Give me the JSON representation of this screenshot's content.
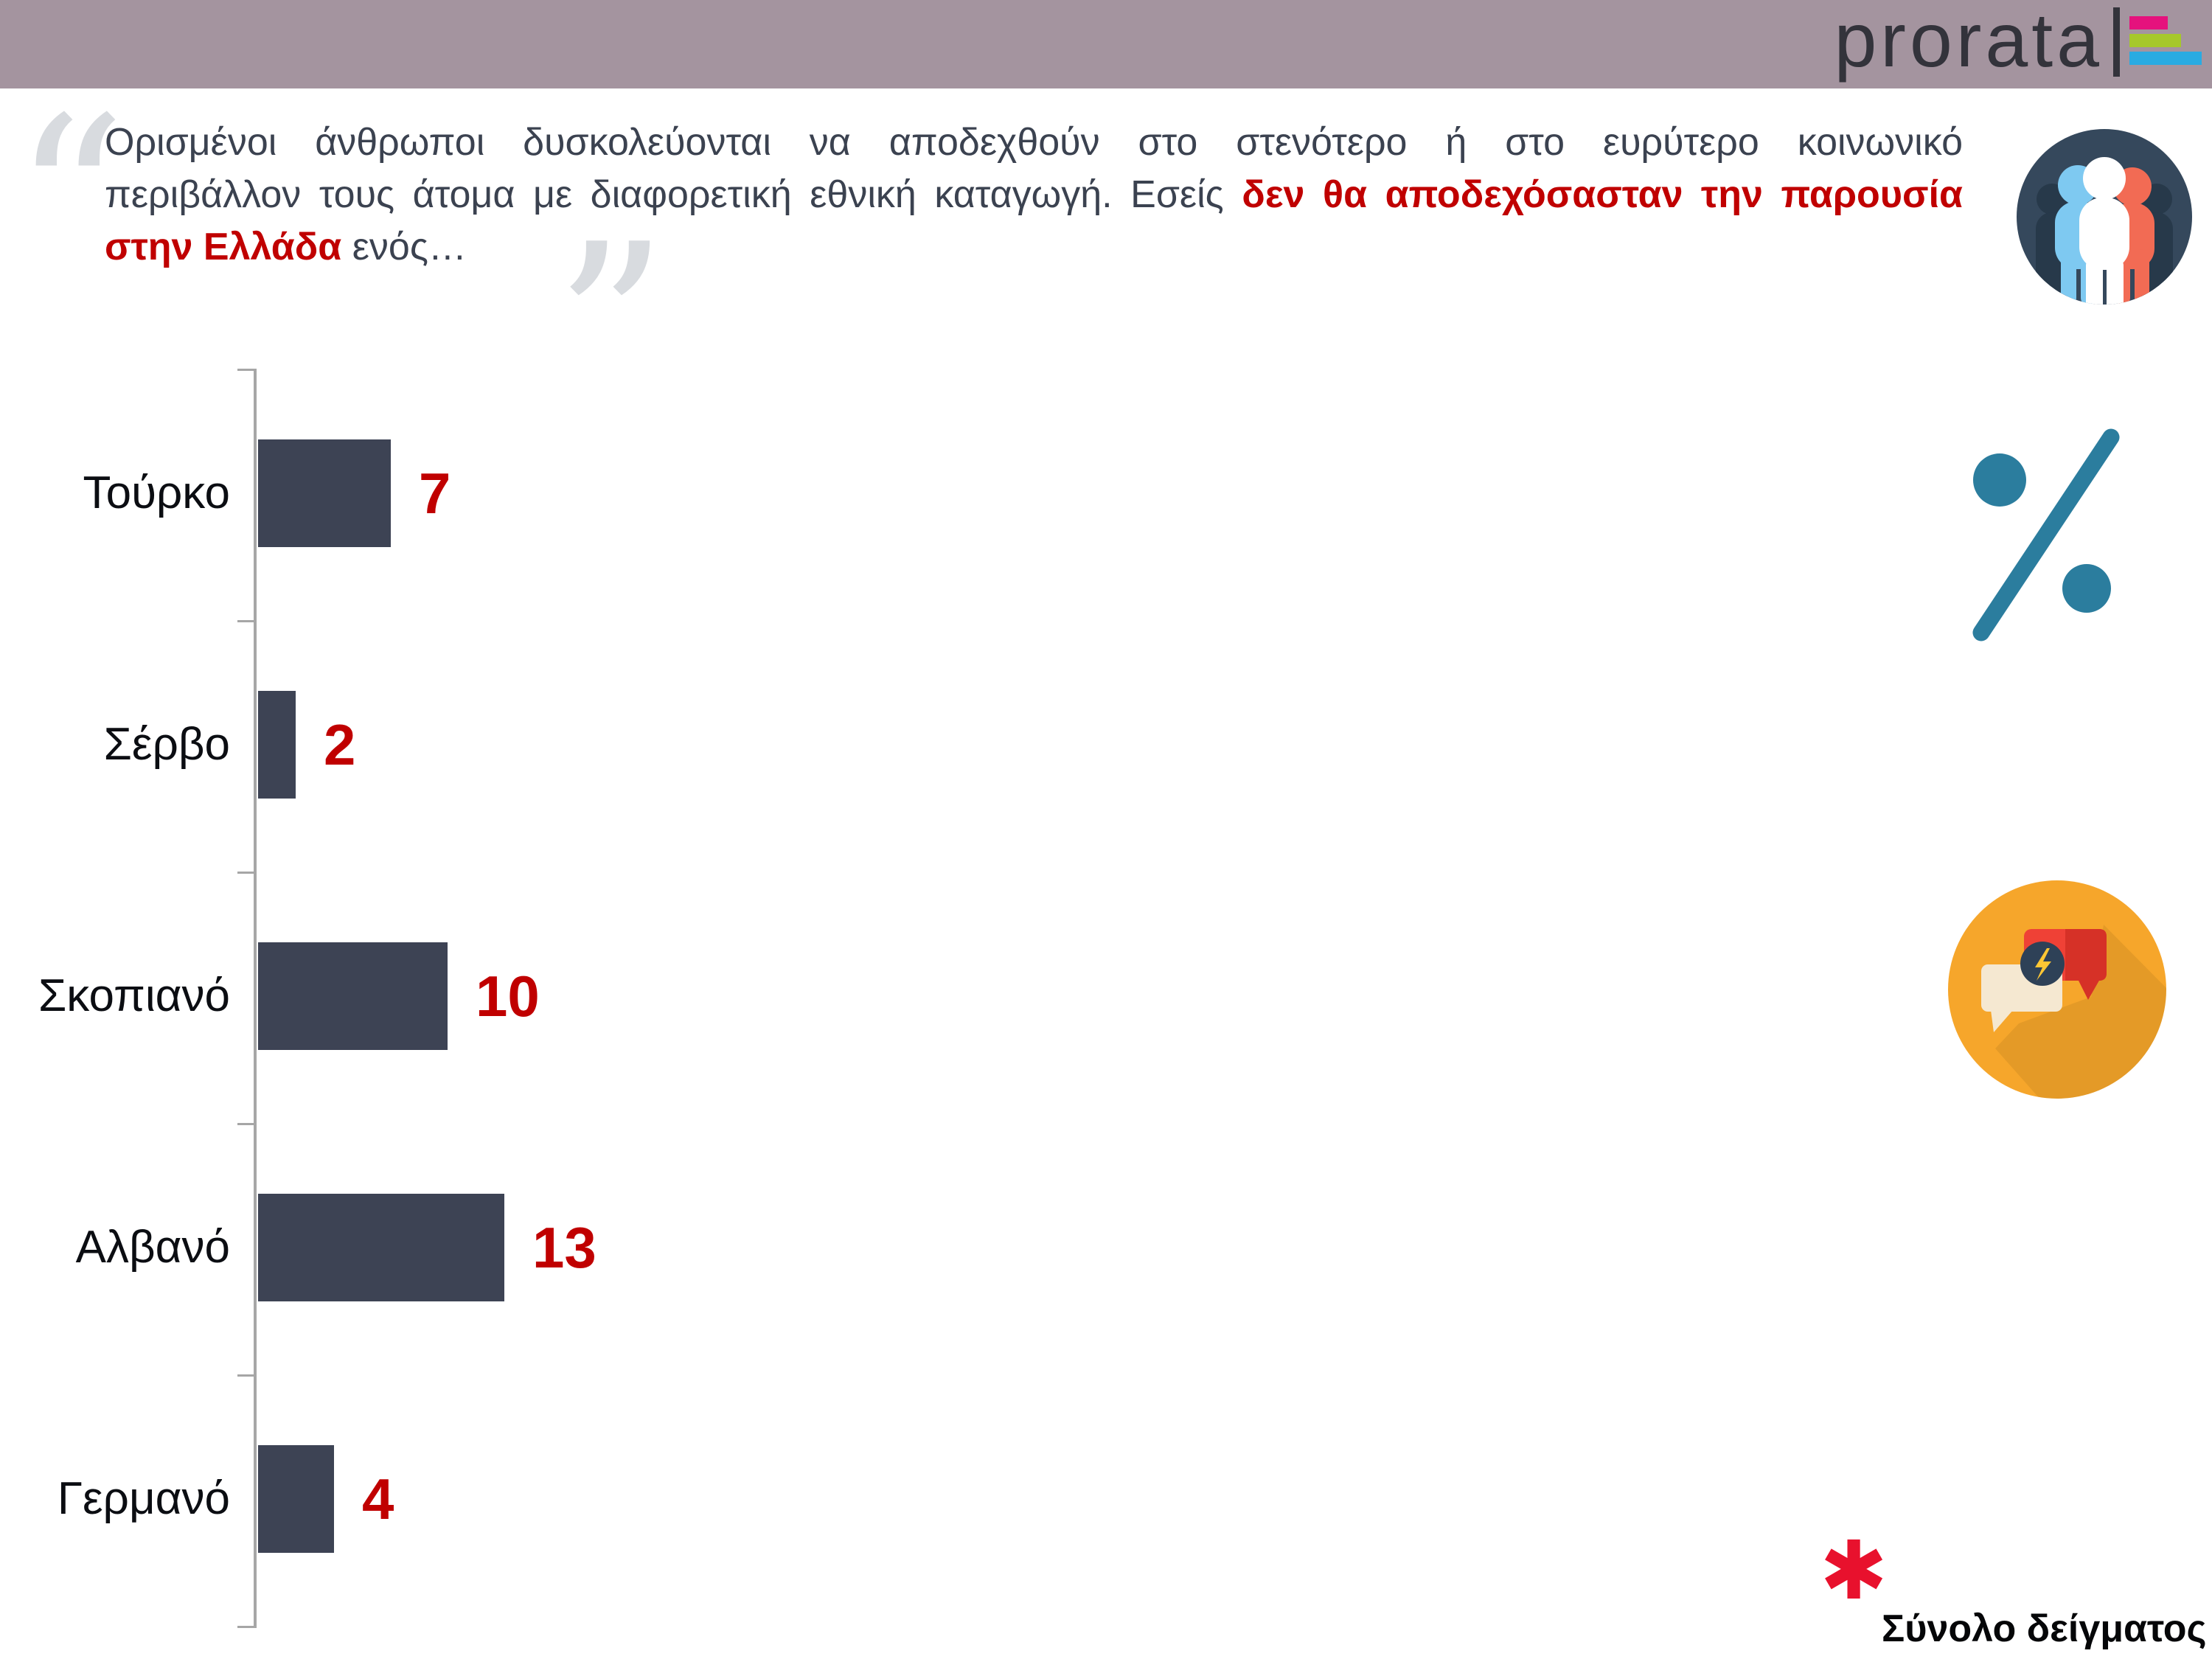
{
  "header": {
    "bar_color": "#a4949f"
  },
  "brand": {
    "name": "prorata",
    "logo_bars": [
      {
        "color": "#e5127d",
        "width": 52,
        "top": 22
      },
      {
        "color": "#a6c82b",
        "width": 70,
        "top": 46
      },
      {
        "color": "#29abe2",
        "width": 98,
        "top": 70
      }
    ]
  },
  "quote": {
    "open_mark": "“",
    "close_mark": "”",
    "line1": "Ορισμένοι άνθρωποι δυσκολεύονται να αποδεχθούν στο στενότερο ή στο ευρύτερο κοινωνικό",
    "line2_normal": "περιβάλλον τους άτομα με διαφορετική εθνική καταγωγή. Εσείς ",
    "line2_highlight": "δεν θα αποδεχόσασταν την παρουσία",
    "line3_highlight": "στην Ελλάδα",
    "line3_normal": " ενός…",
    "highlight_color": "#c00000"
  },
  "chart_data": {
    "type": "bar",
    "orientation": "horizontal",
    "categories": [
      "Τούρκο",
      "Σέρβο",
      "Σκοπιανό",
      "Αλβανό",
      "Γερμανό"
    ],
    "values": [
      7,
      2,
      10,
      13,
      4
    ],
    "unit": "percent",
    "xlim": [
      0,
      15
    ],
    "grid": false,
    "bar_color": "#3d4354",
    "value_label_color": "#c00000",
    "axis_color": "#a6a6a6",
    "value_labels_shown": true
  },
  "icons": {
    "people": "people-group-icon",
    "percent": "percent-icon",
    "chat": "speech-bubbles-icon"
  },
  "footnote": {
    "marker": "✱",
    "marker_color": "#e8112d",
    "text": "Σύνολο δείγματος"
  }
}
